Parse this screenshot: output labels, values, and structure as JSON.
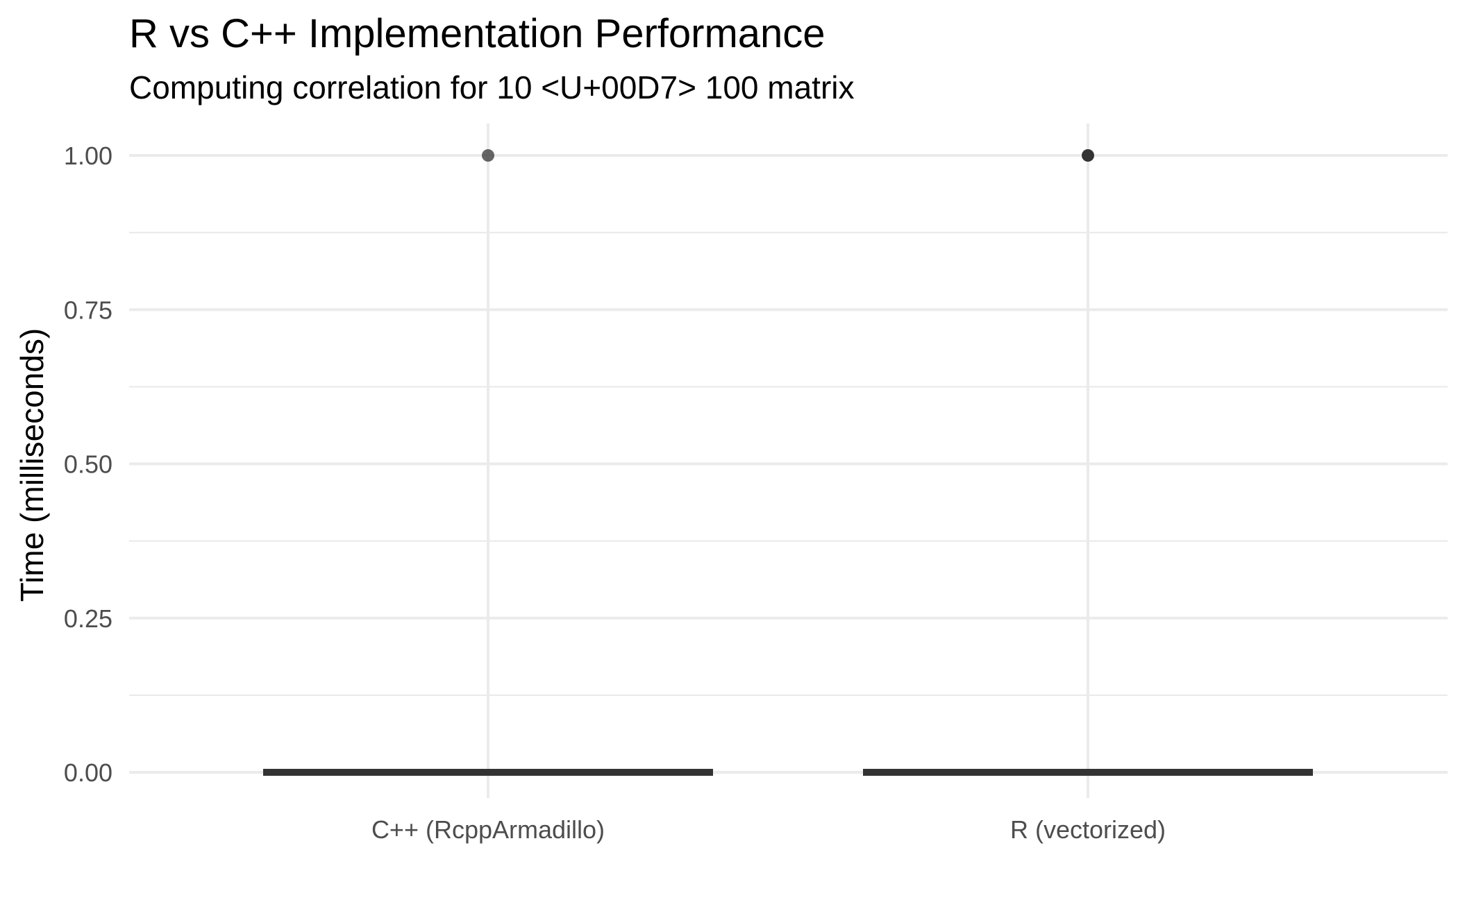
{
  "chart_data": {
    "type": "boxplot",
    "title": "R vs C++ Implementation Performance",
    "subtitle": "Computing correlation for 10 <U+00D7>  100 matrix",
    "xlabel": "",
    "ylabel": "Time (milliseconds)",
    "ylim": [
      0,
      1
    ],
    "y_ticks": [
      "0.00",
      "0.25",
      "0.50",
      "0.75",
      "1.00"
    ],
    "categories": [
      "C++ (RcppArmadillo)",
      "R (vectorized)"
    ],
    "boxes": [
      {
        "category": "C++ (RcppArmadillo)",
        "min": 0,
        "q1": 0,
        "median": 0,
        "q3": 0,
        "max": 0,
        "outliers": [
          1.0
        ]
      },
      {
        "category": "R (vectorized)",
        "min": 0,
        "q1": 0,
        "median": 0,
        "q3": 0,
        "max": 0,
        "outliers": [
          1.0
        ]
      }
    ],
    "grid": true,
    "legend": "none",
    "colors": {
      "box": "#333333",
      "outlier": "#333333",
      "grid": "#ebebeb"
    }
  }
}
